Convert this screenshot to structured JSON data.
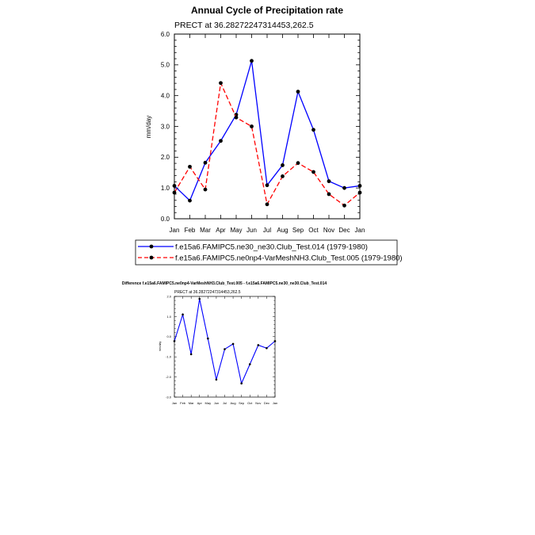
{
  "chart_data": [
    {
      "type": "line",
      "title": "Annual Cycle of Precipitation rate",
      "subtitle": "PRECT at 36.28272247314453,262.5",
      "ylabel": "mm/day",
      "ylim": [
        0,
        6
      ],
      "yticks": [
        "0.0",
        "1.0",
        "2.0",
        "3.0",
        "4.0",
        "5.0",
        "6.0"
      ],
      "categories": [
        "Jan",
        "Feb",
        "Mar",
        "Apr",
        "May",
        "Jun",
        "Jul",
        "Aug",
        "Sep",
        "Oct",
        "Nov",
        "Dec",
        "Jan"
      ],
      "series": [
        {
          "name": "f.e15a6.FAMIPC5.ne30_ne30.Club_Test.014 (1979-1980)",
          "color": "#0000ff",
          "dash": "solid",
          "values": [
            1.07,
            0.59,
            1.82,
            2.53,
            3.38,
            5.13,
            1.09,
            1.74,
            4.13,
            2.89,
            1.22,
            1.0,
            1.07
          ]
        },
        {
          "name": "f.e15a6.FAMIPC5.ne0np4-VarMeshNH3.Club_Test.005 (1979-1980)",
          "color": "#ff0000",
          "dash": "dashed",
          "values": [
            0.85,
            1.69,
            0.95,
            4.41,
            3.29,
            3.0,
            0.47,
            1.38,
            1.81,
            1.52,
            0.8,
            0.43,
            0.85
          ]
        }
      ],
      "legend": "below"
    },
    {
      "type": "line",
      "title": "Difference f.e15a6.FAMIPC5.ne0np4-VarMeshNH3.Club_Test.005 - f.e15a6.FAMIPC5.ne30_ne30.Club_Test.014",
      "subtitle": "PRECT at 36.28272247314453,262.5",
      "ylabel": "mm/day",
      "ylim": [
        -3,
        2
      ],
      "yticks": [
        "-3.0",
        "-2.0",
        "-1.0",
        "0.0",
        "1.0",
        "2.0"
      ],
      "categories": [
        "Jan",
        "Feb",
        "Mar",
        "Apr",
        "May",
        "Jun",
        "Jul",
        "Aug",
        "Sep",
        "Oct",
        "Nov",
        "Dec",
        "Jan"
      ],
      "series": [
        {
          "color": "#0000ff",
          "values": [
            -0.22,
            1.1,
            -0.87,
            1.88,
            -0.09,
            -2.13,
            -0.62,
            -0.36,
            -2.32,
            -1.37,
            -0.42,
            -0.57,
            -0.22
          ]
        }
      ]
    }
  ]
}
